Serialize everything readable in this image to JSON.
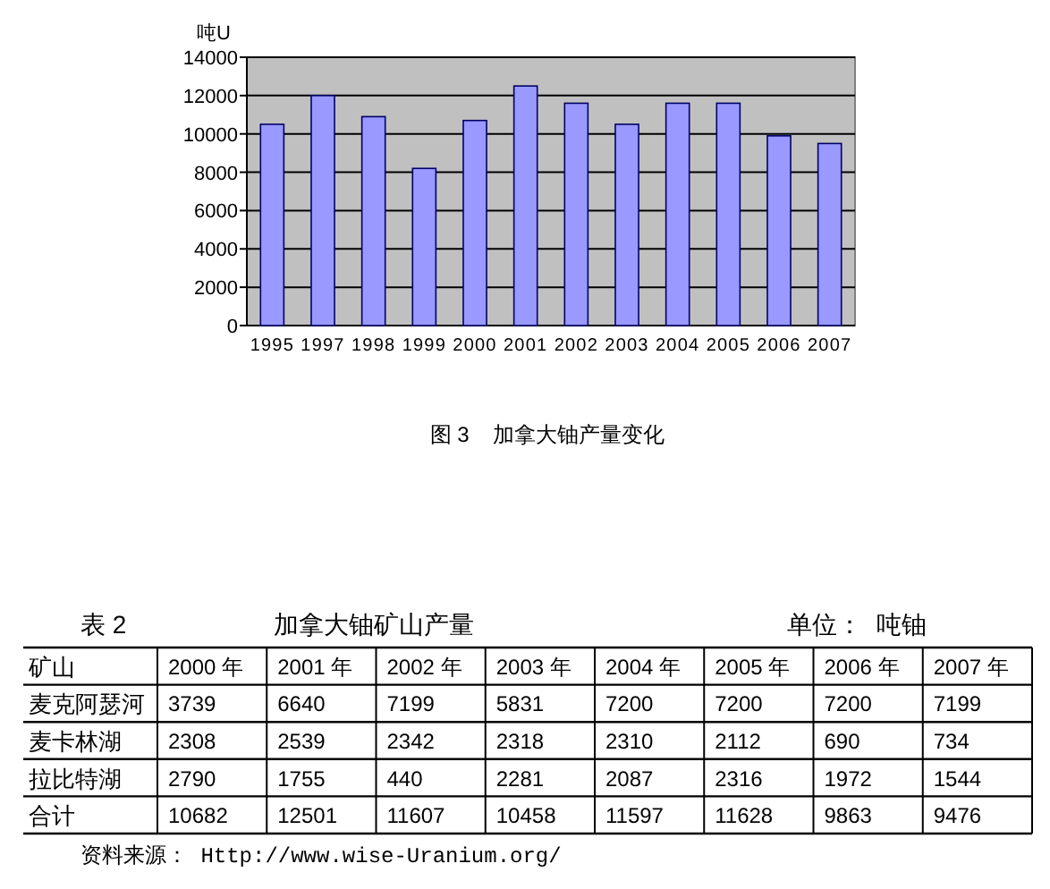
{
  "chart_data": [
    {
      "type": "bar",
      "title": "图 3    加拿大铀产量变化",
      "ylabel": "吨U",
      "categories": [
        "1995",
        "1997",
        "1998",
        "1999",
        "2000",
        "2001",
        "2002",
        "2003",
        "2004",
        "2005",
        "2006",
        "2007"
      ],
      "values": [
        10500,
        12000,
        10900,
        8200,
        10700,
        12500,
        11600,
        10500,
        11600,
        11600,
        9900,
        9500
      ],
      "color": "#9999ff",
      "ylim": [
        0,
        14000
      ],
      "yticks": [
        0,
        2000,
        4000,
        6000,
        8000,
        10000,
        12000,
        14000
      ],
      "grid": "y"
    },
    {
      "type": "heatmap",
      "title": "加拿大铀矿山产量",
      "ylabel": "矿山",
      "categories": [
        "2000 年",
        "2001 年",
        "2002 年",
        "2003 年",
        "2004 年",
        "2005 年",
        "2006 年",
        "2007 年"
      ],
      "y_categories": [
        "麦克阿瑟河",
        "麦卡林湖",
        "拉比特湖",
        "合计"
      ],
      "cells": [
        [
          3739,
          6640,
          7199,
          5831,
          7200,
          7200,
          7200,
          7199
        ],
        [
          2308,
          2539,
          2342,
          2318,
          2310,
          2112,
          690,
          734
        ],
        [
          2790,
          1755,
          440,
          2281,
          2087,
          2316,
          1972,
          1544
        ],
        [
          10682,
          12501,
          11607,
          10458,
          11597,
          11628,
          9863,
          9476
        ]
      ],
      "data_labels": true,
      "annotations": [
        "表 2",
        "单位：  吨铀",
        "资料来源： Http://www.wise-Uranium.org/"
      ]
    }
  ]
}
